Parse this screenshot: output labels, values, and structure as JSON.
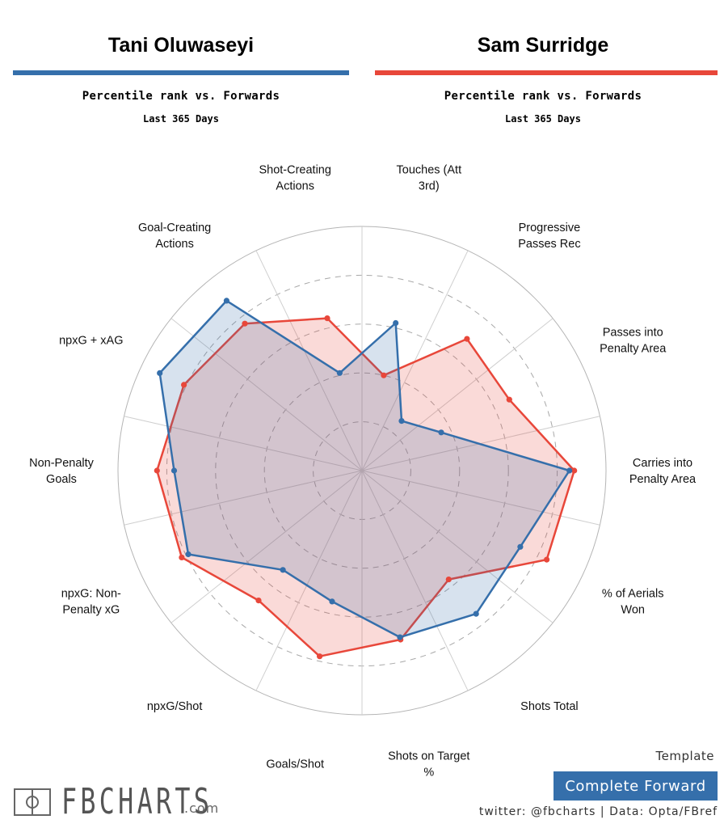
{
  "players": [
    {
      "name": "Tani Oluwaseyi",
      "color": "#356fab",
      "subtitle": "Percentile rank vs. Forwards",
      "period": "Last 365 Days"
    },
    {
      "name": "Sam Surridge",
      "color": "#e8473a",
      "subtitle": "Percentile rank vs. Forwards",
      "period": "Last 365 Days"
    }
  ],
  "chart_data": {
    "type": "radar",
    "range": [
      0,
      100
    ],
    "gridlines": [
      20,
      40,
      60,
      80
    ],
    "categories": [
      "Carries into Penalty Area",
      "Passes into Penalty Area",
      "Progressive Passes Rec",
      "Touches (Att 3rd)",
      "Shot-Creating Actions",
      "Goal-Creating Actions",
      "npxG + xAG",
      "Non-Penalty Goals",
      "npxG: Non-Penalty xG",
      "npxG/Shot",
      "Goals/Shot",
      "Shots on Target %",
      "Shots Total",
      "% of Aerials Won"
    ],
    "label_lines": [
      [
        "Carries into",
        "Penalty Area"
      ],
      [
        "Passes into",
        "Penalty Area"
      ],
      [
        "Progressive",
        "Passes Rec"
      ],
      [
        "Touches (Att",
        "3rd)"
      ],
      [
        "Shot-Creating",
        "Actions"
      ],
      [
        "Goal-Creating",
        "Actions"
      ],
      [
        "npxG + xAG"
      ],
      [
        "Non-Penalty",
        "Goals"
      ],
      [
        "npxG: Non-",
        "Penalty xG"
      ],
      [
        "npxG/Shot"
      ],
      [
        "Goals/Shot"
      ],
      [
        "Shots on Target",
        "%"
      ],
      [
        "Shots Total"
      ],
      [
        "% of Aerials",
        "Won"
      ]
    ],
    "series": [
      {
        "name": "Tani Oluwaseyi",
        "color": "#356fab",
        "values": [
          85,
          36,
          26,
          62,
          41,
          89,
          92,
          77,
          79,
          52,
          55,
          70,
          75,
          72
        ]
      },
      {
        "name": "Sam Surridge",
        "color": "#e8473a",
        "values": [
          87,
          67,
          69,
          40,
          64,
          77,
          81,
          84,
          82,
          68,
          78,
          71,
          57,
          84
        ]
      }
    ]
  },
  "template": {
    "label": "Template",
    "value": "Complete Forward",
    "color": "#356fab"
  },
  "credit": "twitter: @fbcharts | Data: Opta/FBref",
  "logo": {
    "text": "FBCHARTS",
    "suffix": ".com"
  }
}
